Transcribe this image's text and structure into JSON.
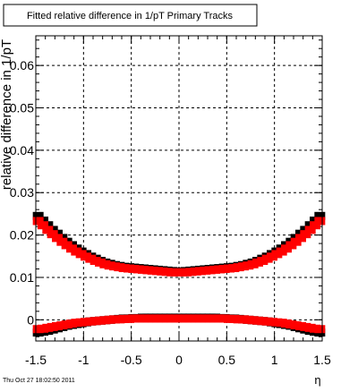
{
  "chart_data": {
    "type": "scatter",
    "title": "Fitted relative difference in 1/pT  Primary Tracks",
    "xlabel": "η",
    "ylabel": "relative difference in 1/pT",
    "footer": "Thu Oct 27 18:02:50 2011",
    "xlim": [
      -1.5,
      1.5
    ],
    "ylim": [
      -0.005,
      0.067
    ],
    "grid": true,
    "x_ticks": [
      -1.5,
      -1,
      -0.5,
      0,
      0.5,
      1,
      1.5
    ],
    "x_tick_labels": [
      "-1.5",
      "-1",
      "-0.5",
      "0",
      "0.5",
      "1",
      "1.5"
    ],
    "y_ticks": [
      0,
      0.01,
      0.02,
      0.03,
      0.04,
      0.05,
      0.06
    ],
    "y_tick_labels": [
      "0",
      "0.01",
      "0.02",
      "0.03",
      "0.04",
      "0.05",
      "0.06"
    ],
    "series": [
      {
        "color": "#000000",
        "x": [
          -1.475,
          -1.425,
          -1.375,
          -1.325,
          -1.275,
          -1.225,
          -1.175,
          -1.125,
          -1.075,
          -1.025,
          -0.975,
          -0.925,
          -0.875,
          -0.825,
          -0.775,
          -0.725,
          -0.675,
          -0.625,
          -0.575,
          -0.525,
          -0.475,
          -0.425,
          -0.375,
          -0.325,
          -0.275,
          -0.225,
          -0.175,
          -0.125,
          -0.075,
          -0.025,
          0.025,
          0.075,
          0.125,
          0.175,
          0.225,
          0.275,
          0.325,
          0.375,
          0.425,
          0.475,
          0.525,
          0.575,
          0.625,
          0.675,
          0.725,
          0.775,
          0.825,
          0.875,
          0.925,
          0.975,
          1.025,
          1.075,
          1.125,
          1.175,
          1.225,
          1.275,
          1.325,
          1.375,
          1.425,
          1.475
        ],
        "y": [
          0.0245,
          0.0234,
          0.0223,
          0.0212,
          0.0203,
          0.0193,
          0.0184,
          0.0176,
          0.0168,
          0.0161,
          0.0155,
          0.0149,
          0.0144,
          0.0139,
          0.0135,
          0.0132,
          0.0129,
          0.0127,
          0.0125,
          0.0124,
          0.0123,
          0.0122,
          0.0121,
          0.012,
          0.0119,
          0.0118,
          0.0117,
          0.0116,
          0.0115,
          0.0114,
          0.0114,
          0.0115,
          0.0116,
          0.0117,
          0.0118,
          0.0119,
          0.012,
          0.0121,
          0.0122,
          0.0123,
          0.0124,
          0.0125,
          0.0127,
          0.0129,
          0.0132,
          0.0135,
          0.0139,
          0.0144,
          0.0149,
          0.0155,
          0.0161,
          0.0168,
          0.0176,
          0.0184,
          0.0193,
          0.0203,
          0.0212,
          0.0223,
          0.0234,
          0.0245
        ]
      },
      {
        "color": "#ff0000",
        "x": [
          -1.475,
          -1.425,
          -1.375,
          -1.325,
          -1.275,
          -1.225,
          -1.175,
          -1.125,
          -1.075,
          -1.025,
          -0.975,
          -0.925,
          -0.875,
          -0.825,
          -0.775,
          -0.725,
          -0.675,
          -0.625,
          -0.575,
          -0.525,
          -0.475,
          -0.425,
          -0.375,
          -0.325,
          -0.275,
          -0.225,
          -0.175,
          -0.125,
          -0.075,
          -0.025,
          0.025,
          0.075,
          0.125,
          0.175,
          0.225,
          0.275,
          0.325,
          0.375,
          0.425,
          0.475,
          0.525,
          0.575,
          0.625,
          0.675,
          0.725,
          0.775,
          0.825,
          0.875,
          0.925,
          0.975,
          1.025,
          1.075,
          1.125,
          1.175,
          1.225,
          1.275,
          1.325,
          1.375,
          1.425,
          1.475
        ],
        "y": [
          0.0233,
          0.0223,
          0.0212,
          0.0202,
          0.0193,
          0.0184,
          0.0176,
          0.0168,
          0.0161,
          0.0155,
          0.0149,
          0.0144,
          0.0139,
          0.0135,
          0.0131,
          0.0128,
          0.0126,
          0.0124,
          0.0122,
          0.0121,
          0.012,
          0.0119,
          0.0118,
          0.0117,
          0.0116,
          0.0115,
          0.0114,
          0.0113,
          0.0112,
          0.0112,
          0.0112,
          0.0112,
          0.0113,
          0.0114,
          0.0115,
          0.0116,
          0.0117,
          0.0118,
          0.0119,
          0.012,
          0.0121,
          0.0122,
          0.0124,
          0.0126,
          0.0128,
          0.0131,
          0.0135,
          0.0139,
          0.0144,
          0.0149,
          0.0155,
          0.0161,
          0.0168,
          0.0176,
          0.0184,
          0.0193,
          0.0202,
          0.0212,
          0.0223,
          0.0233
        ]
      },
      {
        "color": "#000000",
        "x": [
          -1.475,
          -1.425,
          -1.375,
          -1.325,
          -1.275,
          -1.225,
          -1.175,
          -1.125,
          -1.075,
          -1.025,
          -0.975,
          -0.925,
          -0.875,
          -0.825,
          -0.775,
          -0.725,
          -0.675,
          -0.625,
          -0.575,
          -0.525,
          -0.475,
          -0.425,
          -0.375,
          -0.325,
          -0.275,
          -0.225,
          -0.175,
          -0.125,
          -0.075,
          -0.025,
          0.025,
          0.075,
          0.125,
          0.175,
          0.225,
          0.275,
          0.325,
          0.375,
          0.425,
          0.475,
          0.525,
          0.575,
          0.625,
          0.675,
          0.725,
          0.775,
          0.825,
          0.875,
          0.925,
          0.975,
          1.025,
          1.075,
          1.125,
          1.175,
          1.225,
          1.275,
          1.325,
          1.375,
          1.425,
          1.475
        ],
        "y": [
          -0.003,
          -0.0028,
          -0.0026,
          -0.0023,
          -0.002,
          -0.0017,
          -0.0014,
          -0.0012,
          -0.001,
          -0.0008,
          -0.0006,
          -0.0004,
          -0.0003,
          -0.0002,
          -0.0001,
          0.0,
          0.0001,
          0.0002,
          0.0003,
          0.0003,
          0.0004,
          0.0004,
          0.0005,
          0.0005,
          0.0005,
          0.0005,
          0.0005,
          0.0005,
          0.0005,
          0.0005,
          0.0005,
          0.0005,
          0.0005,
          0.0005,
          0.0005,
          0.0005,
          0.0005,
          0.0005,
          0.0004,
          0.0004,
          0.0003,
          0.0003,
          0.0002,
          0.0001,
          0.0,
          -0.0001,
          -0.0002,
          -0.0003,
          -0.0004,
          -0.0006,
          -0.0008,
          -0.001,
          -0.0012,
          -0.0014,
          -0.0017,
          -0.002,
          -0.0023,
          -0.0026,
          -0.0028,
          -0.003
        ]
      },
      {
        "color": "#ff0000",
        "x": [
          -1.475,
          -1.425,
          -1.375,
          -1.325,
          -1.275,
          -1.225,
          -1.175,
          -1.125,
          -1.075,
          -1.025,
          -0.975,
          -0.925,
          -0.875,
          -0.825,
          -0.775,
          -0.725,
          -0.675,
          -0.625,
          -0.575,
          -0.525,
          -0.475,
          -0.425,
          -0.375,
          -0.325,
          -0.275,
          -0.225,
          -0.175,
          -0.125,
          -0.075,
          -0.025,
          0.025,
          0.075,
          0.125,
          0.175,
          0.225,
          0.275,
          0.325,
          0.375,
          0.425,
          0.475,
          0.525,
          0.575,
          0.625,
          0.675,
          0.725,
          0.775,
          0.825,
          0.875,
          0.925,
          0.975,
          1.025,
          1.075,
          1.125,
          1.175,
          1.225,
          1.275,
          1.325,
          1.375,
          1.425,
          1.475
        ],
        "y": [
          -0.0022,
          -0.0021,
          -0.0019,
          -0.0017,
          -0.0015,
          -0.0013,
          -0.0011,
          -0.0009,
          -0.0007,
          -0.0006,
          -0.0005,
          -0.0004,
          -0.0003,
          -0.0002,
          -0.0001,
          0.0,
          0.0001,
          0.0001,
          0.0002,
          0.0002,
          0.0003,
          0.0003,
          0.0003,
          0.0003,
          0.0003,
          0.0003,
          0.0003,
          0.0003,
          0.0003,
          0.0003,
          0.0003,
          0.0003,
          0.0003,
          0.0003,
          0.0003,
          0.0003,
          0.0003,
          0.0003,
          0.0003,
          0.0003,
          0.0002,
          0.0002,
          0.0001,
          0.0001,
          0.0,
          -0.0001,
          -0.0002,
          -0.0003,
          -0.0004,
          -0.0005,
          -0.0006,
          -0.0007,
          -0.0009,
          -0.0011,
          -0.0013,
          -0.0015,
          -0.0017,
          -0.0019,
          -0.0021,
          -0.0022
        ]
      }
    ]
  }
}
